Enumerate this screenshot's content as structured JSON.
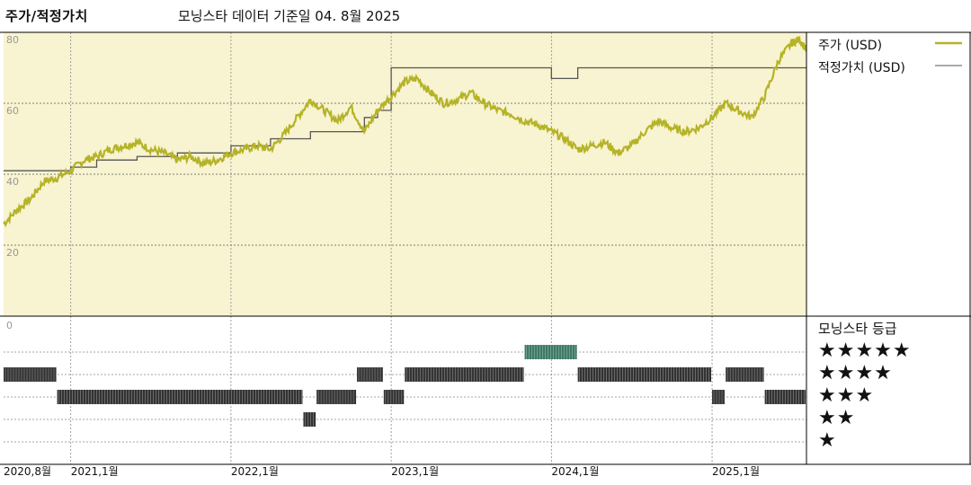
{
  "header": {
    "title": "주가/적정가치",
    "subtitle": "모닝스타 데이터 기준일 04. 8월 2025"
  },
  "legend": {
    "price": "주가 (USD)",
    "fair_value": "적정가치 (USD)",
    "price_color": "#b5b327",
    "fair_value_color": "#555555"
  },
  "rating_section": {
    "title": "모닝스타 등급",
    "stars": [
      "★★★★★",
      "★★★★",
      "★★★",
      "★★",
      "★"
    ],
    "neutral_color": "#333333",
    "five_star_color": "#3d7a66"
  },
  "chart_data": {
    "type": "line",
    "x_unit": "date",
    "xlim": [
      "2020-08-01",
      "2025-08-04"
    ],
    "ylim": [
      0,
      80
    ],
    "yticks": [
      "80",
      "60",
      "40",
      "20",
      "0"
    ],
    "yticks_values": [
      80,
      60,
      40,
      20,
      0
    ],
    "xticks": [
      "2020,8월",
      "2021,1월",
      "2022,1월",
      "2023,1월",
      "2024,1월",
      "2025,1월"
    ],
    "xticks_dates": [
      "2020-08-01",
      "2021-01-01",
      "2022-01-01",
      "2023-01-01",
      "2024-01-01",
      "2025-01-01"
    ],
    "grid": true,
    "legend_position": "right",
    "series": [
      {
        "name": "주가 (USD)",
        "points": [
          [
            "2020-08-01",
            26
          ],
          [
            "2020-09-01",
            30
          ],
          [
            "2020-10-01",
            33
          ],
          [
            "2020-11-01",
            38
          ],
          [
            "2020-12-01",
            39
          ],
          [
            "2021-01-01",
            41
          ],
          [
            "2021-02-01",
            44
          ],
          [
            "2021-03-01",
            45
          ],
          [
            "2021-04-01",
            47
          ],
          [
            "2021-05-01",
            48
          ],
          [
            "2021-06-01",
            49
          ],
          [
            "2021-07-01",
            47
          ],
          [
            "2021-08-01",
            46
          ],
          [
            "2021-09-01",
            44
          ],
          [
            "2021-10-01",
            45
          ],
          [
            "2021-11-01",
            43
          ],
          [
            "2021-12-01",
            44
          ],
          [
            "2022-01-01",
            46
          ],
          [
            "2022-02-01",
            47
          ],
          [
            "2022-03-01",
            48
          ],
          [
            "2022-04-01",
            47
          ],
          [
            "2022-05-01",
            51
          ],
          [
            "2022-06-01",
            56
          ],
          [
            "2022-07-01",
            61
          ],
          [
            "2022-08-01",
            58
          ],
          [
            "2022-09-01",
            55
          ],
          [
            "2022-10-01",
            59
          ],
          [
            "2022-11-01",
            52
          ],
          [
            "2022-12-01",
            58
          ],
          [
            "2023-01-01",
            62
          ],
          [
            "2023-02-01",
            66
          ],
          [
            "2023-03-01",
            67
          ],
          [
            "2023-04-01",
            63
          ],
          [
            "2023-05-01",
            60
          ],
          [
            "2023-06-01",
            61
          ],
          [
            "2023-07-01",
            63
          ],
          [
            "2023-08-01",
            60
          ],
          [
            "2023-09-01",
            58
          ],
          [
            "2023-10-01",
            57
          ],
          [
            "2023-11-01",
            55
          ],
          [
            "2023-12-01",
            54
          ],
          [
            "2024-01-01",
            52
          ],
          [
            "2024-02-01",
            50
          ],
          [
            "2024-03-01",
            47
          ],
          [
            "2024-04-01",
            48
          ],
          [
            "2024-05-01",
            49
          ],
          [
            "2024-06-01",
            46
          ],
          [
            "2024-07-01",
            48
          ],
          [
            "2024-08-01",
            52
          ],
          [
            "2024-09-01",
            55
          ],
          [
            "2024-10-01",
            53
          ],
          [
            "2024-11-01",
            52
          ],
          [
            "2024-12-01",
            53
          ],
          [
            "2025-01-01",
            56
          ],
          [
            "2025-02-01",
            60
          ],
          [
            "2025-03-01",
            58
          ],
          [
            "2025-04-01",
            56
          ],
          [
            "2025-05-01",
            62
          ],
          [
            "2025-06-01",
            72
          ],
          [
            "2025-07-01",
            77
          ],
          [
            "2025-07-20",
            78
          ],
          [
            "2025-08-04",
            75
          ]
        ]
      },
      {
        "name": "적정가치 (USD)",
        "step": true,
        "points": [
          [
            "2020-08-01",
            41
          ],
          [
            "2021-01-01",
            42
          ],
          [
            "2021-03-01",
            44
          ],
          [
            "2021-06-01",
            45
          ],
          [
            "2021-09-01",
            46
          ],
          [
            "2022-01-01",
            48
          ],
          [
            "2022-04-01",
            50
          ],
          [
            "2022-07-01",
            52
          ],
          [
            "2022-11-01",
            56
          ],
          [
            "2022-12-01",
            58
          ],
          [
            "2023-01-01",
            70
          ],
          [
            "2023-04-01",
            70
          ],
          [
            "2024-01-01",
            67
          ],
          [
            "2024-03-01",
            70
          ],
          [
            "2025-08-04",
            70
          ]
        ]
      }
    ],
    "rating_bands": {
      "rows": [
        "★★★★★",
        "★★★★",
        "★★★",
        "★★"
      ],
      "ranges": [
        {
          "rating": 4,
          "from": "2020-08-01",
          "to": "2020-12-01"
        },
        {
          "rating": 3,
          "from": "2020-12-01",
          "to": "2022-06-15"
        },
        {
          "rating": 2,
          "from": "2022-06-15",
          "to": "2022-07-15"
        },
        {
          "rating": 3,
          "from": "2022-07-15",
          "to": "2022-10-15"
        },
        {
          "rating": 4,
          "from": "2022-10-15",
          "to": "2022-12-15"
        },
        {
          "rating": 3,
          "from": "2022-12-15",
          "to": "2023-02-01"
        },
        {
          "rating": 4,
          "from": "2023-02-01",
          "to": "2023-11-01"
        },
        {
          "rating": 5,
          "from": "2023-11-01",
          "to": "2024-03-01"
        },
        {
          "rating": 4,
          "from": "2024-03-01",
          "to": "2025-01-01"
        },
        {
          "rating": 3,
          "from": "2025-01-01",
          "to": "2025-02-01"
        },
        {
          "rating": 4,
          "from": "2025-02-01",
          "to": "2025-05-01"
        },
        {
          "rating": 3,
          "from": "2025-05-01",
          "to": "2025-08-04"
        }
      ]
    }
  }
}
